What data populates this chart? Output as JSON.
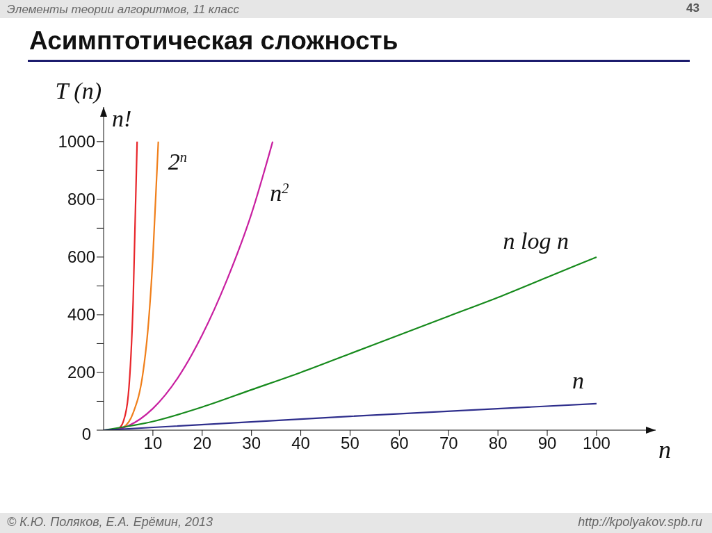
{
  "chart_data": {
    "type": "line",
    "title": "Асимптотическая сложность",
    "ylabel": "T (n)",
    "xlabel": "n",
    "xlim": [
      0,
      112
    ],
    "xticks": [
      10,
      20,
      30,
      40,
      50,
      60,
      70,
      80,
      90,
      100
    ],
    "ylim": [
      0,
      1120
    ],
    "yticks": [
      0,
      {
        "value": 100,
        "label": null
      },
      200,
      {
        "value": 300,
        "label": null
      },
      400,
      {
        "value": 500,
        "label": null
      },
      600,
      {
        "value": 700,
        "label": null
      },
      800,
      {
        "value": 900,
        "label": null
      },
      1000
    ],
    "series": [
      {
        "name": "n!",
        "color": "#e8262b",
        "x": [
          0,
          2,
          3,
          4,
          5,
          6,
          6.8
        ],
        "values": [
          0,
          0,
          5,
          30,
          120,
          450,
          1000
        ]
      },
      {
        "name": "2$^{n}$",
        "color": "#f07f1a",
        "x": [
          0,
          2,
          4,
          6,
          8,
          9,
          10,
          11.1
        ],
        "values": [
          0,
          0,
          10,
          60,
          200,
          350,
          600,
          1000
        ]
      },
      {
        "name": "n$^{2}$",
        "color": "#c81fa0",
        "x": [
          0,
          2,
          5,
          10,
          15,
          20,
          25,
          30,
          34.3
        ],
        "values": [
          0,
          0,
          15,
          75,
          180,
          330,
          520,
          750,
          1000
        ]
      },
      {
        "name": "n log n",
        "color": "#168a1c",
        "x": [
          0,
          10,
          20,
          30,
          40,
          50,
          60,
          70,
          80,
          90,
          100
        ],
        "values": [
          0,
          30,
          80,
          140,
          200,
          265,
          330,
          395,
          460,
          530,
          600
        ]
      },
      {
        "name": "n",
        "color": "#2e2e8c",
        "x": [
          0,
          50,
          100
        ],
        "values": [
          0,
          48,
          92
        ]
      }
    ],
    "annotations": [
      "Элементы теории алгоритмов, 11 класс",
      "43",
      "© К.Ю. Поляков, Е.А. Ерёмин, 2013",
      "http://kpolyakov.spb.ru"
    ]
  }
}
